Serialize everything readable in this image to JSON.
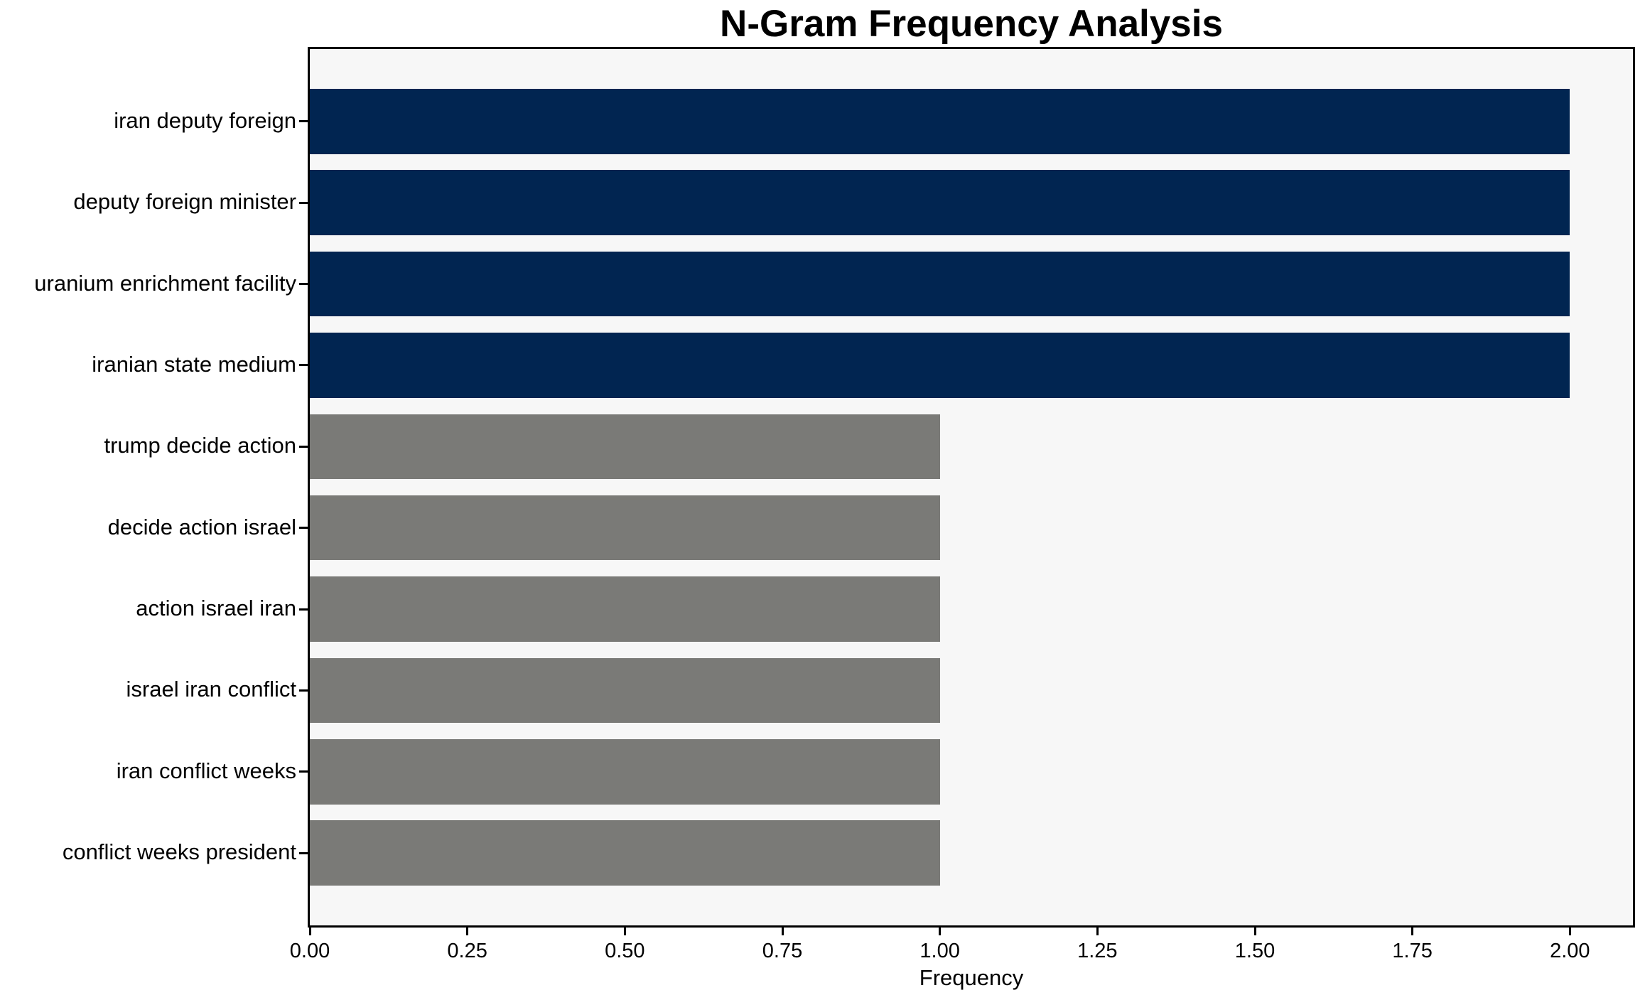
{
  "chart_data": {
    "type": "bar",
    "orientation": "horizontal",
    "title": "N-Gram Frequency Analysis",
    "xlabel": "Frequency",
    "ylabel": "",
    "categories": [
      "iran deputy foreign",
      "deputy foreign minister",
      "uranium enrichment facility",
      "iranian state medium",
      "trump decide action",
      "decide action israel",
      "action israel iran",
      "israel iran conflict",
      "iran conflict weeks",
      "conflict weeks president"
    ],
    "values": [
      2,
      2,
      2,
      2,
      1,
      1,
      1,
      1,
      1,
      1
    ],
    "bar_colors": [
      "#012551",
      "#012551",
      "#012551",
      "#012551",
      "#7a7a77",
      "#7a7a77",
      "#7a7a77",
      "#7a7a77",
      "#7a7a77",
      "#7a7a77"
    ],
    "xlim": [
      0,
      2.1
    ],
    "xtick_values": [
      0,
      0.25,
      0.5,
      0.75,
      1.0,
      1.25,
      1.5,
      1.75,
      2.0
    ],
    "xtick_labels": [
      "0.00",
      "0.25",
      "0.50",
      "0.75",
      "1.00",
      "1.25",
      "1.50",
      "1.75",
      "2.00"
    ],
    "grid": false,
    "legend": "none",
    "bar_height_frac": 0.8,
    "y_margin_frac": 0.05,
    "colors": {
      "highlight_bar": "#012551",
      "default_bar": "#7a7a77",
      "plot_background": "#f7f7f7",
      "figure_background": "#ffffff",
      "spine": "#000000",
      "text": "#000000"
    }
  }
}
